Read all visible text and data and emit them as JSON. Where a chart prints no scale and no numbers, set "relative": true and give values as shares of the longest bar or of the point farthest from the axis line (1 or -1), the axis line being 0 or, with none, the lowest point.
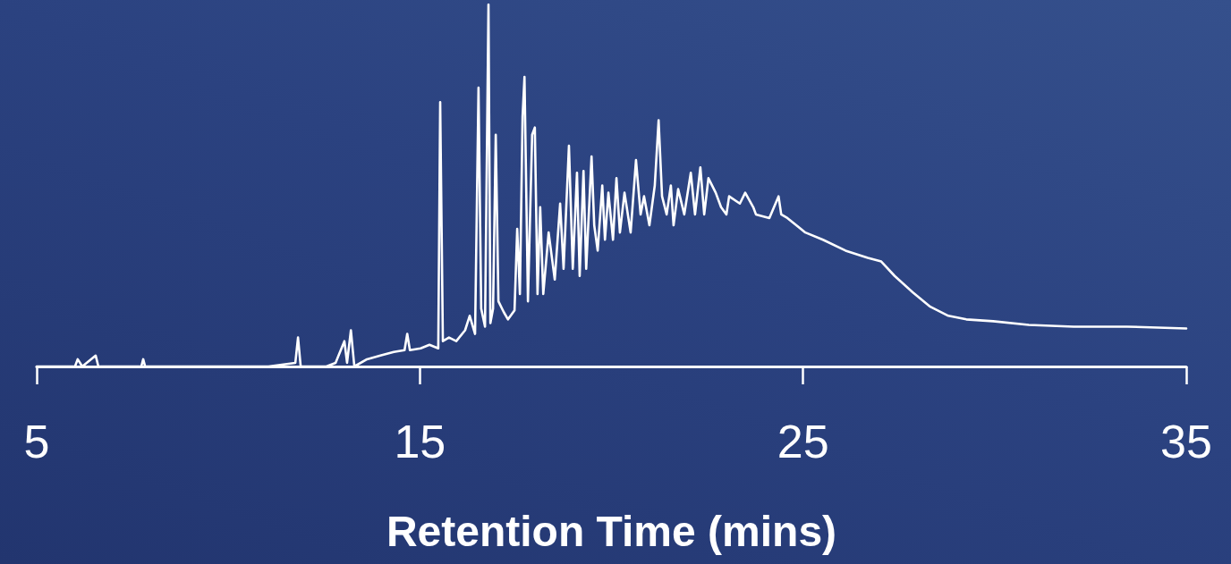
{
  "chart_data": {
    "type": "line",
    "xlabel": "Retention Time (mins)",
    "relative": true,
    "xlim": [
      5,
      35
    ],
    "xticks": [
      5,
      15,
      25,
      35
    ],
    "x": [
      5.0,
      6.0,
      6.07,
      6.19,
      6.54,
      6.61,
      7.73,
      7.78,
      7.83,
      11.05,
      11.75,
      11.82,
      11.89,
      12.56,
      12.8,
      13.03,
      13.1,
      13.2,
      13.29,
      13.62,
      13.97,
      14.32,
      14.6,
      14.67,
      14.74,
      15.02,
      15.25,
      15.48,
      15.53,
      15.6,
      15.76,
      15.95,
      16.18,
      16.3,
      16.44,
      16.53,
      16.6,
      16.7,
      16.79,
      16.84,
      16.91,
      16.98,
      17.05,
      17.19,
      17.3,
      17.47,
      17.54,
      17.61,
      17.68,
      17.73,
      17.82,
      17.93,
      18.0,
      18.07,
      18.14,
      18.22,
      18.36,
      18.52,
      18.66,
      18.75,
      18.89,
      18.99,
      19.1,
      19.17,
      19.27,
      19.34,
      19.48,
      19.55,
      19.64,
      19.76,
      19.83,
      19.92,
      20.04,
      20.13,
      20.22,
      20.34,
      20.5,
      20.64,
      20.76,
      20.85,
      20.99,
      21.13,
      21.23,
      21.32,
      21.44,
      21.55,
      21.62,
      21.74,
      21.9,
      22.07,
      22.18,
      22.32,
      22.42,
      22.53,
      22.72,
      22.86,
      23.0,
      23.07,
      23.35,
      23.49,
      23.7,
      23.77,
      24.12,
      24.36,
      24.43,
      24.59,
      25.06,
      25.52,
      26.11,
      26.69,
      27.04,
      27.39,
      27.86,
      28.32,
      28.79,
      29.26,
      29.96,
      30.89,
      32.06,
      33.46,
      35.0
    ],
    "series": [
      {
        "color": "#ffffff",
        "values": [
          0,
          0,
          0.02,
          0,
          0.03,
          0,
          0,
          0.02,
          0,
          0,
          0.01,
          0.08,
          0,
          0,
          0.01,
          0.07,
          0.01,
          0.1,
          0,
          0.02,
          0.03,
          0.04,
          0.045,
          0.09,
          0.045,
          0.05,
          0.06,
          0.05,
          0.73,
          0.07,
          0.08,
          0.07,
          0.1,
          0.14,
          0.09,
          0.77,
          0.16,
          0.11,
          1.0,
          0.12,
          0.16,
          0.64,
          0.18,
          0.15,
          0.13,
          0.155,
          0.38,
          0.2,
          0.69,
          0.8,
          0.18,
          0.64,
          0.66,
          0.2,
          0.44,
          0.2,
          0.37,
          0.24,
          0.45,
          0.27,
          0.61,
          0.27,
          0.535,
          0.25,
          0.54,
          0.27,
          0.58,
          0.39,
          0.32,
          0.5,
          0.35,
          0.48,
          0.35,
          0.52,
          0.37,
          0.48,
          0.37,
          0.57,
          0.42,
          0.47,
          0.39,
          0.5,
          0.68,
          0.47,
          0.42,
          0.5,
          0.39,
          0.49,
          0.42,
          0.535,
          0.42,
          0.55,
          0.42,
          0.52,
          0.48,
          0.44,
          0.42,
          0.47,
          0.45,
          0.48,
          0.44,
          0.42,
          0.41,
          0.47,
          0.42,
          0.41,
          0.37,
          0.35,
          0.32,
          0.3,
          0.29,
          0.25,
          0.205,
          0.165,
          0.14,
          0.13,
          0.125,
          0.115,
          0.11,
          0.11,
          0.105
        ]
      }
    ]
  }
}
